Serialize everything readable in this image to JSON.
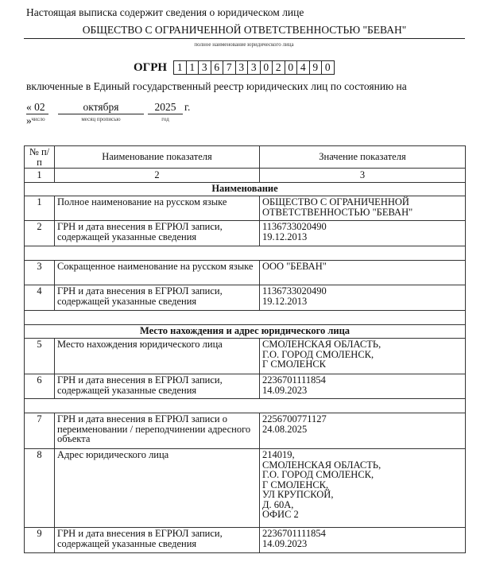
{
  "intro": "Настоящая выписка содержит сведения о юридическом лице",
  "org_name": "ОБЩЕСТВО С ОГРАНИЧЕННОЙ ОТВЕТСТВЕННОСТЬЮ \"БЕВАН\"",
  "org_name_caption": "полное наименование юридического лица",
  "ogrn_label": "ОГРН",
  "ogrn_digits": [
    "1",
    "1",
    "3",
    "6",
    "7",
    "3",
    "3",
    "0",
    "2",
    "0",
    "4",
    "9",
    "0"
  ],
  "included_text": "включенные в Единый государственный реестр юридических лиц по состоянию на",
  "date": {
    "open": "«",
    "day": "02",
    "close": "»",
    "month": "октября",
    "year": "2025",
    "suffix": "г.",
    "day_caption": "число",
    "month_caption": "месяц прописью",
    "year_caption": "год"
  },
  "table": {
    "headers": [
      "№ п/п",
      "Наименование показателя",
      "Значение показателя"
    ],
    "col_numbers": [
      "1",
      "2",
      "3"
    ],
    "sections": [
      {
        "title": "Наименование",
        "rows": [
          {
            "n": "1",
            "name": "Полное наименование на русском языке",
            "value": "ОБЩЕСТВО С ОГРАНИЧЕННОЙ\nОТВЕТСТВЕННОСТЬЮ \"БЕВАН\""
          },
          {
            "n": "2",
            "name": "ГРН и дата внесения в ЕГРЮЛ записи, содержащей указанные сведения",
            "value": "1136733020490\n19.12.2013"
          },
          {
            "n": "3",
            "name": "Сокращенное наименование на русском языке",
            "value": "ООО \"БЕВАН\""
          },
          {
            "n": "4",
            "name": "ГРН и дата внесения в ЕГРЮЛ записи, содержащей указанные сведения",
            "value": "1136733020490\n19.12.2013"
          }
        ]
      },
      {
        "title": "Место нахождения и адрес юридического лица",
        "rows": [
          {
            "n": "5",
            "name": "Место нахождения юридического лица",
            "value": "СМОЛЕНСКАЯ ОБЛАСТЬ,\nГ.О. ГОРОД СМОЛЕНСК,\nГ СМОЛЕНСК"
          },
          {
            "n": "6",
            "name": "ГРН и дата внесения в ЕГРЮЛ записи, содержащей указанные сведения",
            "value": "2236701111854\n14.09.2023"
          },
          {
            "n": "7",
            "name": "ГРН и дата внесения в ЕГРЮЛ записи о переименовании / переподчинении адресного объекта",
            "value": "2256700771127\n24.08.2025"
          },
          {
            "n": "8",
            "name": "Адрес юридического лица",
            "value": "214019,\nСМОЛЕНСКАЯ ОБЛАСТЬ,\nГ.О. ГОРОД СМОЛЕНСК,\nГ СМОЛЕНСК,\nУЛ КРУПСКОЙ,\nД. 60А,\nОФИС 2"
          },
          {
            "n": "9",
            "name": "ГРН и дата внесения в ЕГРЮЛ записи, содержащей указанные сведения",
            "value": "2236701111854\n14.09.2023"
          }
        ]
      }
    ]
  }
}
